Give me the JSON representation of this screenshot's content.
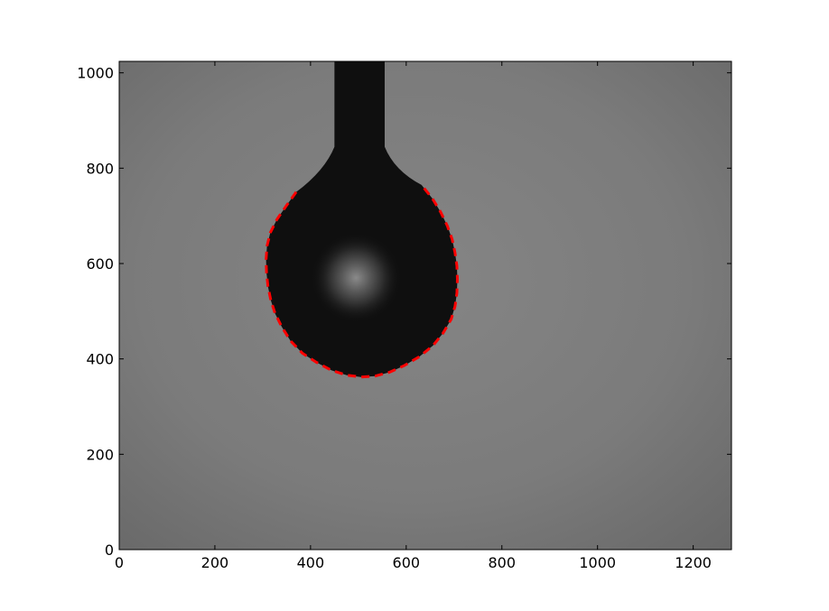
{
  "chart_data": {
    "type": "image",
    "title": "",
    "xlabel": "",
    "ylabel": "",
    "xlim": [
      0,
      1280
    ],
    "ylim": [
      0,
      1024
    ],
    "xticks": [
      0,
      200,
      400,
      600,
      800,
      1000,
      1200
    ],
    "yticks": [
      0,
      200,
      400,
      600,
      800,
      1000
    ],
    "xtick_labels": [
      "0",
      "200",
      "400",
      "600",
      "800",
      "1000",
      "1200"
    ],
    "ytick_labels": [
      "0",
      "200",
      "400",
      "600",
      "800",
      "1000"
    ],
    "grid": false,
    "background_image": "grayscale photograph of a pendant drop hanging from a needle",
    "needle": {
      "x_range": [
        450,
        555
      ],
      "y_range": [
        845,
        1024
      ]
    },
    "drop_profile": {
      "name": "fitted drop contour",
      "style": "dashed",
      "color": "#ff0000",
      "points": [
        [
          370,
          750
        ],
        [
          350,
          722
        ],
        [
          330,
          693
        ],
        [
          316,
          665
        ],
        [
          309,
          637
        ],
        [
          307,
          608
        ],
        [
          308,
          580
        ],
        [
          311,
          552
        ],
        [
          317,
          523
        ],
        [
          326,
          495
        ],
        [
          340,
          467
        ],
        [
          358,
          438
        ],
        [
          383,
          412
        ],
        [
          412,
          393
        ],
        [
          444,
          376
        ],
        [
          475,
          366
        ],
        [
          505,
          362
        ],
        [
          535,
          364
        ],
        [
          565,
          372
        ],
        [
          596,
          386
        ],
        [
          628,
          405
        ],
        [
          656,
          428
        ],
        [
          677,
          454
        ],
        [
          694,
          483
        ],
        [
          702,
          510
        ],
        [
          706,
          538
        ],
        [
          707,
          567
        ],
        [
          706,
          595
        ],
        [
          702,
          623
        ],
        [
          696,
          651
        ],
        [
          686,
          679
        ],
        [
          672,
          708
        ],
        [
          655,
          736
        ],
        [
          632,
          765
        ]
      ]
    },
    "colors": {
      "frame": "#000000",
      "drop": "#0f0f0f",
      "background": "#808080"
    }
  }
}
